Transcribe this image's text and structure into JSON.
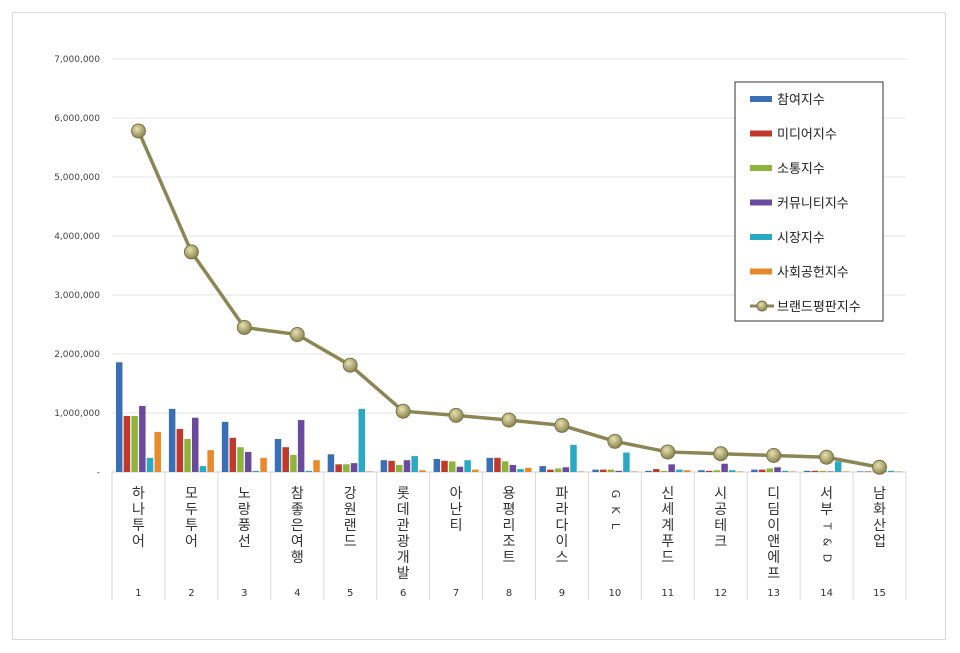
{
  "chart_data": {
    "type": "bar",
    "title": "",
    "xlabel": "",
    "ylabel": "",
    "ylim": [
      0,
      7000000
    ],
    "yticks": [
      "",
      "1,000,000",
      "2,000,000",
      "3,000,000",
      "4,000,000",
      "5,000,000",
      "6,000,000",
      "7,000,000"
    ],
    "grid": true,
    "legend_position": "top-right",
    "categories": [
      "하나투어",
      "모두투어",
      "노랑풍선",
      "참좋은여행",
      "강원랜드",
      "롯데관광개발",
      "아난티",
      "용평리조트",
      "파라다이스",
      "GKL",
      "신세계푸드",
      "시공테크",
      "디딤이앤에프",
      "서부T&D",
      "남화산업"
    ],
    "ranks": [
      "1",
      "2",
      "3",
      "4",
      "5",
      "6",
      "7",
      "8",
      "9",
      "10",
      "11",
      "12",
      "13",
      "14",
      "15"
    ],
    "series": [
      {
        "name": "참여지수",
        "type": "bar",
        "color": "#3a6fb5",
        "values": [
          1860000,
          1070000,
          850000,
          560000,
          300000,
          200000,
          220000,
          240000,
          100000,
          40000,
          20000,
          30000,
          40000,
          20000,
          10000
        ]
      },
      {
        "name": "미디어지수",
        "type": "bar",
        "color": "#c0392b",
        "values": [
          950000,
          730000,
          580000,
          420000,
          130000,
          190000,
          190000,
          240000,
          40000,
          40000,
          50000,
          20000,
          40000,
          20000,
          10000
        ]
      },
      {
        "name": "소통지수",
        "type": "bar",
        "color": "#8db53c",
        "values": [
          950000,
          560000,
          420000,
          290000,
          130000,
          120000,
          180000,
          180000,
          60000,
          40000,
          20000,
          30000,
          60000,
          20000,
          10000
        ]
      },
      {
        "name": "커뮤니티지수",
        "type": "bar",
        "color": "#6b4a9e",
        "values": [
          1120000,
          920000,
          340000,
          880000,
          150000,
          200000,
          90000,
          120000,
          80000,
          20000,
          130000,
          140000,
          80000,
          10000,
          10000
        ]
      },
      {
        "name": "시장지수",
        "type": "bar",
        "color": "#2aa9c4",
        "values": [
          240000,
          100000,
          20000,
          20000,
          1070000,
          270000,
          200000,
          50000,
          460000,
          330000,
          40000,
          30000,
          20000,
          180000,
          20000
        ]
      },
      {
        "name": "사회공헌지수",
        "type": "bar",
        "color": "#e8892b",
        "values": [
          680000,
          370000,
          240000,
          200000,
          10000,
          30000,
          40000,
          70000,
          10000,
          10000,
          30000,
          10000,
          10000,
          10000,
          10000
        ]
      },
      {
        "name": "브랜드평판지수",
        "type": "line",
        "color": "#8c8655",
        "values": [
          5780000,
          3730000,
          2450000,
          2330000,
          1810000,
          1030000,
          960000,
          880000,
          790000,
          520000,
          340000,
          310000,
          280000,
          250000,
          80000
        ]
      }
    ]
  }
}
